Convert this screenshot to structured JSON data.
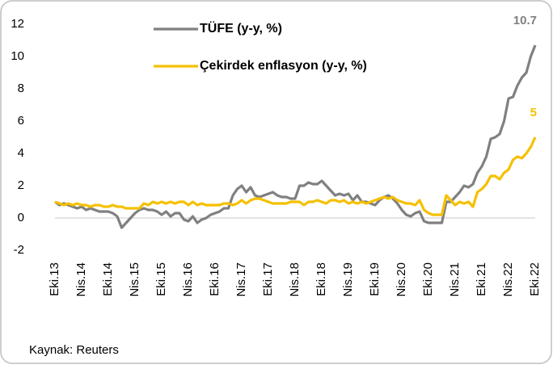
{
  "chart_data": {
    "type": "line",
    "categories": [
      "Eki.13",
      null,
      null,
      null,
      null,
      null,
      "Nis.14",
      null,
      null,
      null,
      null,
      null,
      "Eki.14",
      null,
      null,
      null,
      null,
      null,
      "Nis.15",
      null,
      null,
      null,
      null,
      null,
      "Eki.15",
      null,
      null,
      null,
      null,
      null,
      "Nis.16",
      null,
      null,
      null,
      null,
      null,
      "Eki.16",
      null,
      null,
      null,
      null,
      null,
      "Nis.17",
      null,
      null,
      null,
      null,
      null,
      "Eki.17",
      null,
      null,
      null,
      null,
      null,
      "Nis.18",
      null,
      null,
      null,
      null,
      null,
      "Eki.18",
      null,
      null,
      null,
      null,
      null,
      "Nis.19",
      null,
      null,
      null,
      null,
      null,
      "Eki.19",
      null,
      null,
      null,
      null,
      null,
      "Nis.20",
      null,
      null,
      null,
      null,
      null,
      "Eki.20",
      null,
      null,
      null,
      null,
      null,
      "Nis.21",
      null,
      null,
      null,
      null,
      null,
      "Eki.21",
      null,
      null,
      null,
      null,
      null,
      "Nis.22",
      null,
      null,
      null,
      null,
      null,
      "Eki.22"
    ],
    "series": [
      {
        "name": "TÜFE (y-y, %)",
        "color": "#808080",
        "values": [
          1.0,
          0.8,
          0.9,
          0.8,
          0.7,
          0.6,
          0.7,
          0.5,
          0.6,
          0.5,
          0.4,
          0.4,
          0.4,
          0.3,
          0.1,
          -0.6,
          -0.3,
          0.0,
          0.3,
          0.5,
          0.6,
          0.5,
          0.5,
          0.4,
          0.2,
          0.4,
          0.1,
          0.3,
          0.3,
          -0.1,
          -0.2,
          0.1,
          -0.3,
          -0.1,
          0.0,
          0.2,
          0.3,
          0.4,
          0.6,
          0.6,
          1.4,
          1.8,
          2.0,
          1.6,
          1.9,
          1.4,
          1.3,
          1.4,
          1.5,
          1.6,
          1.4,
          1.3,
          1.3,
          1.2,
          1.2,
          2.0,
          2.0,
          2.2,
          2.1,
          2.1,
          2.3,
          2.0,
          1.7,
          1.4,
          1.5,
          1.4,
          1.5,
          1.1,
          1.4,
          1.0,
          1.0,
          0.9,
          0.8,
          1.1,
          1.3,
          1.4,
          1.2,
          0.9,
          0.5,
          0.2,
          0.1,
          0.3,
          0.4,
          -0.2,
          -0.3,
          -0.3,
          -0.3,
          -0.3,
          1.0,
          1.0,
          1.3,
          1.6,
          2.0,
          1.9,
          2.1,
          2.8,
          3.2,
          3.8,
          4.9,
          5.0,
          5.2,
          6.0,
          7.4,
          7.5,
          8.2,
          8.7,
          9.0,
          10.0,
          10.7
        ]
      },
      {
        "name": "Çekirdek enflasyon (y-y, %)",
        "color": "#f5c000",
        "values": [
          1.0,
          0.9,
          0.8,
          0.9,
          0.8,
          0.9,
          0.8,
          0.8,
          0.7,
          0.8,
          0.8,
          0.7,
          0.7,
          0.8,
          0.7,
          0.7,
          0.6,
          0.6,
          0.6,
          0.6,
          0.9,
          0.8,
          1.0,
          0.9,
          1.0,
          0.9,
          1.0,
          0.9,
          1.0,
          1.0,
          0.8,
          1.0,
          0.8,
          0.9,
          0.8,
          0.8,
          0.8,
          0.8,
          0.9,
          0.9,
          0.8,
          0.9,
          1.1,
          0.9,
          1.1,
          1.2,
          1.2,
          1.1,
          1.0,
          0.9,
          0.9,
          0.9,
          0.9,
          1.0,
          1.0,
          1.0,
          0.8,
          1.0,
          1.0,
          1.1,
          1.0,
          0.9,
          1.1,
          1.1,
          1.0,
          1.1,
          0.9,
          1.0,
          0.9,
          1.0,
          0.9,
          1.0,
          1.1,
          1.2,
          1.3,
          1.2,
          1.3,
          1.1,
          1.0,
          0.9,
          0.9,
          0.8,
          1.1,
          0.5,
          0.3,
          0.2,
          0.2,
          0.2,
          1.4,
          1.1,
          0.8,
          1.0,
          0.9,
          1.0,
          0.7,
          1.6,
          1.8,
          2.1,
          2.6,
          2.6,
          2.4,
          2.8,
          3.0,
          3.6,
          3.8,
          3.7,
          4.0,
          4.4,
          5.0
        ]
      }
    ],
    "ylim": [
      -2,
      12
    ],
    "yticks": [
      -2,
      0,
      2,
      4,
      6,
      8,
      10,
      12
    ],
    "legend": "upper left",
    "grid": false,
    "source": "Kaynak: Reuters"
  }
}
